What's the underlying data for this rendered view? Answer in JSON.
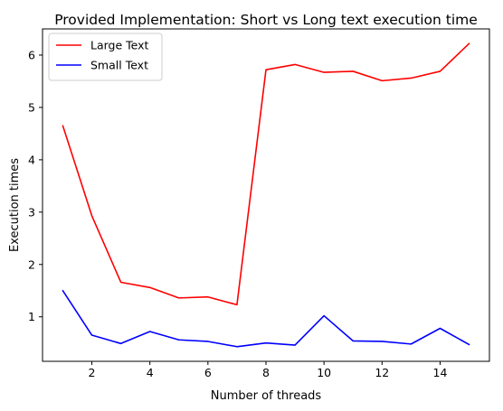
{
  "chart_data": {
    "type": "line",
    "title": "Provided Implementation: Short vs Long text execution time",
    "xlabel": "Number of threads",
    "ylabel": "Execution times",
    "x": [
      1,
      2,
      3,
      4,
      5,
      6,
      7,
      8,
      9,
      10,
      11,
      12,
      13,
      14,
      15
    ],
    "xlim": [
      0.3,
      15.7
    ],
    "ylim": [
      0.15,
      6.5
    ],
    "xticks": [
      2,
      4,
      6,
      8,
      10,
      12,
      14
    ],
    "yticks": [
      1,
      2,
      3,
      4,
      5,
      6
    ],
    "grid": false,
    "legend_position": "top-left",
    "series": [
      {
        "name": "Large Text",
        "color": "#ff0000",
        "values": [
          4.65,
          2.93,
          1.66,
          1.56,
          1.36,
          1.38,
          1.23,
          5.72,
          5.82,
          5.67,
          5.69,
          5.51,
          5.56,
          5.69,
          6.22
        ]
      },
      {
        "name": "Small Text",
        "color": "#0000ff",
        "values": [
          1.5,
          0.65,
          0.49,
          0.72,
          0.56,
          0.53,
          0.43,
          0.5,
          0.46,
          1.02,
          0.54,
          0.53,
          0.48,
          0.78,
          0.47
        ]
      }
    ]
  }
}
